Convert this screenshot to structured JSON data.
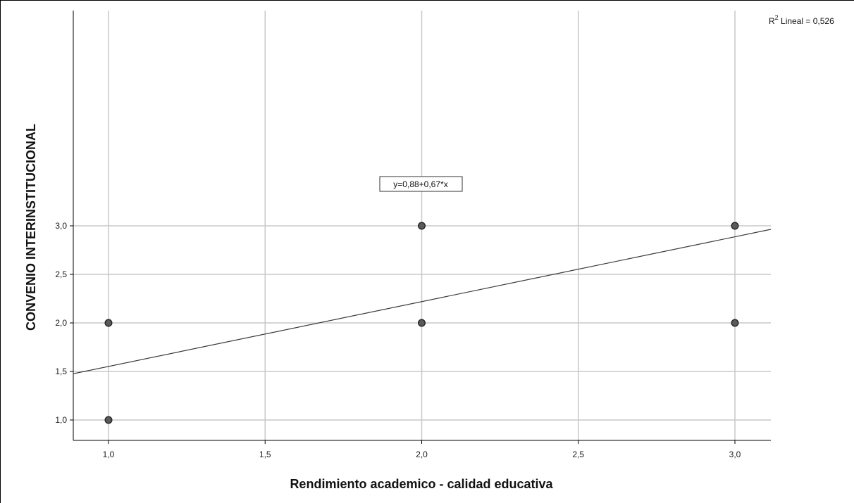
{
  "chart_data": {
    "type": "scatter",
    "xlabel": "Rendimiento academico - calidad educativa",
    "ylabel": "CONVENIO INTERINSTITUCIONAL",
    "xlim": [
      0.89,
      3.11
    ],
    "ylim": [
      0.9,
      3.1
    ],
    "x_ticks": [
      1.0,
      1.5,
      2.0,
      2.5,
      3.0
    ],
    "x_tick_labels": [
      "1,0",
      "1,5",
      "2,0",
      "2,5",
      "3,0"
    ],
    "y_ticks": [
      1.0,
      1.5,
      2.0,
      2.5,
      3.0
    ],
    "y_tick_labels": [
      "1,0",
      "1,5",
      "2,0",
      "2,5",
      "3,0"
    ],
    "grid": true,
    "points": [
      {
        "x": 1.0,
        "y": 1.0
      },
      {
        "x": 1.0,
        "y": 2.0
      },
      {
        "x": 2.0,
        "y": 2.0
      },
      {
        "x": 2.0,
        "y": 3.0
      },
      {
        "x": 3.0,
        "y": 2.0
      },
      {
        "x": 3.0,
        "y": 3.0
      }
    ],
    "fit_line": {
      "intercept": 0.88,
      "slope": 0.67
    },
    "equation_label": "y=0,88+0,67*x",
    "r2_label": {
      "prefix": "R",
      "superscript": "2",
      "text": " Lineal = 0,526"
    },
    "colors": {
      "point_fill": "#5a5a5a",
      "point_stroke": "#222222",
      "grid": "#c8c8c8",
      "fit_line": "#3a3a3a"
    }
  }
}
